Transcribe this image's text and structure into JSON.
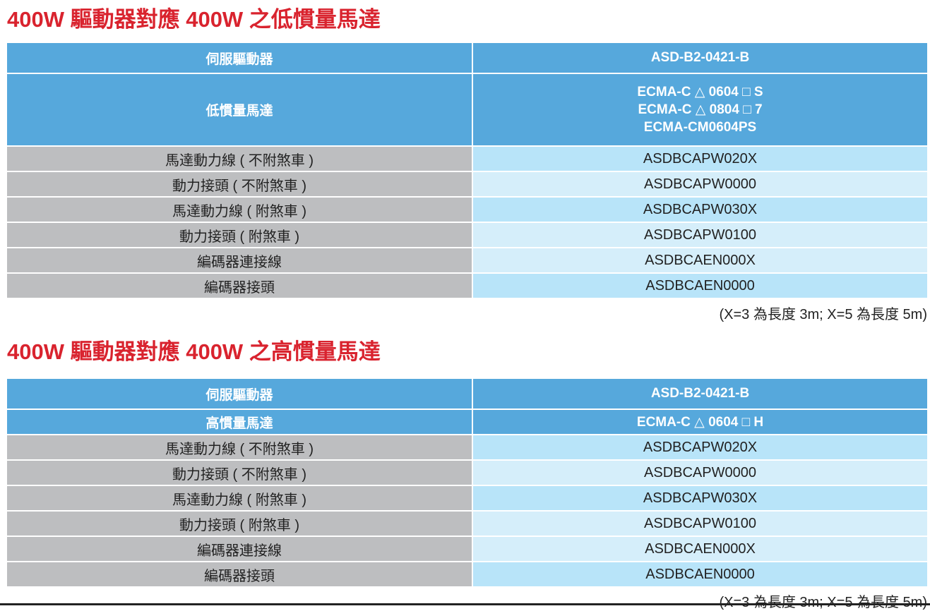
{
  "sections": [
    {
      "title": "400W 驅動器對應 400W 之低慣量馬達",
      "header": {
        "label": "伺服驅動器",
        "value": "ASD-B2-0421-B"
      },
      "motor": {
        "label": "低慣量馬達",
        "values": [
          "ECMA-C △ 0604 □ S",
          "ECMA-C △ 0804 □ 7",
          "ECMA-CM0604PS"
        ]
      },
      "rows": [
        {
          "label": "馬達動力線 ( 不附煞車 )",
          "value": "ASDBCAPW020X"
        },
        {
          "label": "動力接頭 ( 不附煞車 )",
          "value": "ASDBCAPW0000"
        },
        {
          "label": "馬達動力線 ( 附煞車 )",
          "value": "ASDBCAPW030X"
        },
        {
          "label": "動力接頭 ( 附煞車 )",
          "value": "ASDBCAPW0100"
        },
        {
          "label": "編碼器連接線",
          "value": "ASDBCAEN000X"
        },
        {
          "label": "編碼器接頭",
          "value": "ASDBCAEN0000"
        }
      ],
      "note": "(X=3 為長度 3m; X=5 為長度 5m)"
    },
    {
      "title": "400W 驅動器對應 400W 之高慣量馬達",
      "header": {
        "label": "伺服驅動器",
        "value": "ASD-B2-0421-B"
      },
      "motor": {
        "label": "高慣量馬達",
        "values": [
          "ECMA-C △ 0604 □ H"
        ]
      },
      "rows": [
        {
          "label": "馬達動力線 ( 不附煞車 )",
          "value": "ASDBCAPW020X"
        },
        {
          "label": "動力接頭 ( 不附煞車 )",
          "value": "ASDBCAPW0000"
        },
        {
          "label": "馬達動力線 ( 附煞車 )",
          "value": "ASDBCAPW030X"
        },
        {
          "label": "動力接頭 ( 附煞車 )",
          "value": "ASDBCAPW0100"
        },
        {
          "label": "編碼器連接線",
          "value": "ASDBCAEN000X"
        },
        {
          "label": "編碼器接頭",
          "value": "ASDBCAEN0000"
        }
      ],
      "note": "(X=3 為長度 3m; X=5 為長度 5m)"
    }
  ],
  "colors": {
    "title": "#d9232e",
    "header": "#56a8dc",
    "label_cell": "#bdbec0",
    "value_cell_a": "#b8e4f9",
    "value_cell_b": "#d5eefa"
  }
}
